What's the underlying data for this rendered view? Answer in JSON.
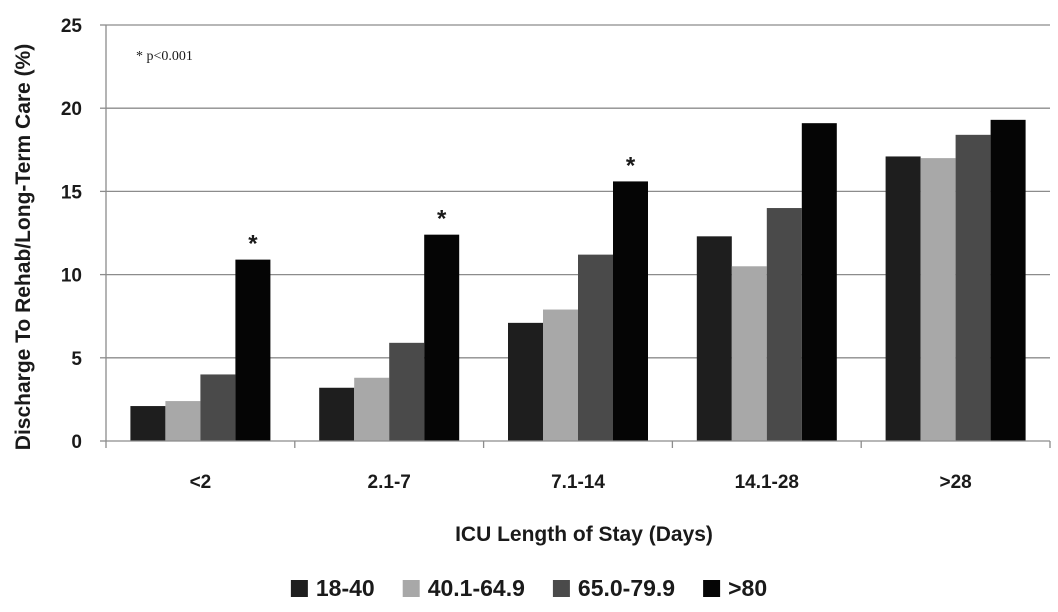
{
  "chart_data": {
    "type": "bar",
    "xlabel": "ICU Length of Stay (Days)",
    "ylabel": "Discharge To Rehab/Long-Term Care (%)",
    "ylim": [
      0,
      25
    ],
    "yticks": [
      0,
      5,
      10,
      15,
      20,
      25
    ],
    "categories": [
      "<2",
      "2.1-7",
      "7.1-14",
      "14.1-28",
      ">28"
    ],
    "series": [
      {
        "name": "18-40",
        "color": "#1e1e1e",
        "values": [
          2.1,
          3.2,
          7.1,
          12.3,
          17.1
        ]
      },
      {
        "name": "40.1-64.9",
        "color": "#a8a8a8",
        "values": [
          2.4,
          3.8,
          7.9,
          10.5,
          17.0
        ]
      },
      {
        "name": "65.0-79.9",
        "color": "#4a4a4a",
        "values": [
          4.0,
          5.9,
          11.2,
          14.0,
          18.4
        ]
      },
      {
        "name": ">80",
        "color": "#050505",
        "values": [
          10.9,
          12.4,
          15.6,
          19.1,
          19.3
        ]
      }
    ],
    "annotations": [
      {
        "text": "*",
        "category": "<2",
        "series": ">80"
      },
      {
        "text": "*",
        "category": "2.1-7",
        "series": ">80"
      },
      {
        "text": "*",
        "category": "7.1-14",
        "series": ">80"
      }
    ],
    "note": "* p<0.001",
    "gridlines": true,
    "legend_position": "bottom"
  }
}
